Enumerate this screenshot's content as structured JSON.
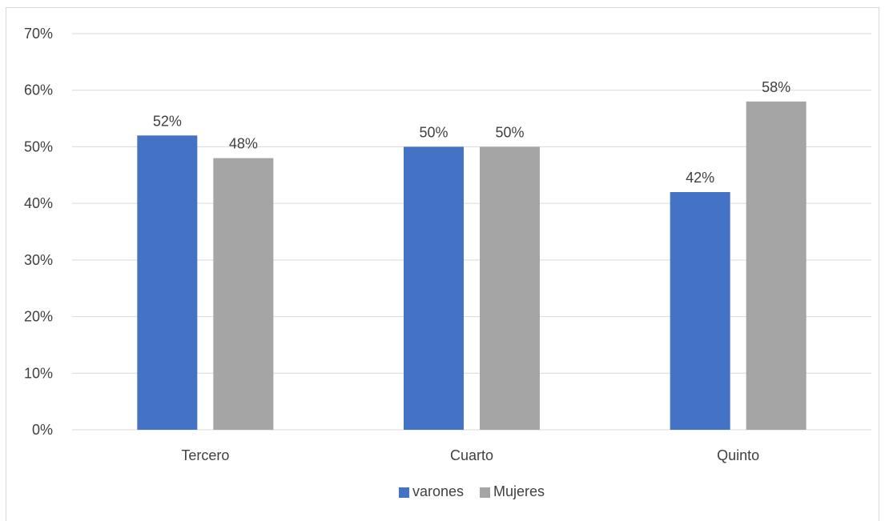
{
  "chart_data": {
    "type": "bar",
    "categories": [
      "Tercero",
      "Cuarto",
      "Quinto"
    ],
    "series": [
      {
        "name": "varones",
        "values": [
          52,
          50,
          42
        ],
        "labels": [
          "52%",
          "50%",
          "42%"
        ],
        "color": "#4472C4"
      },
      {
        "name": "Mujeres",
        "values": [
          48,
          50,
          58
        ],
        "labels": [
          "48%",
          "50%",
          "58%"
        ],
        "color": "#A5A5A5"
      }
    ],
    "y_ticks": [
      "0%",
      "10%",
      "20%",
      "30%",
      "40%",
      "50%",
      "60%",
      "70%"
    ],
    "ylim": [
      0,
      70
    ],
    "grid": true,
    "gridline_color": "#d9d9d9",
    "legend_position": "bottom",
    "title": "",
    "xlabel": "",
    "ylabel": ""
  }
}
